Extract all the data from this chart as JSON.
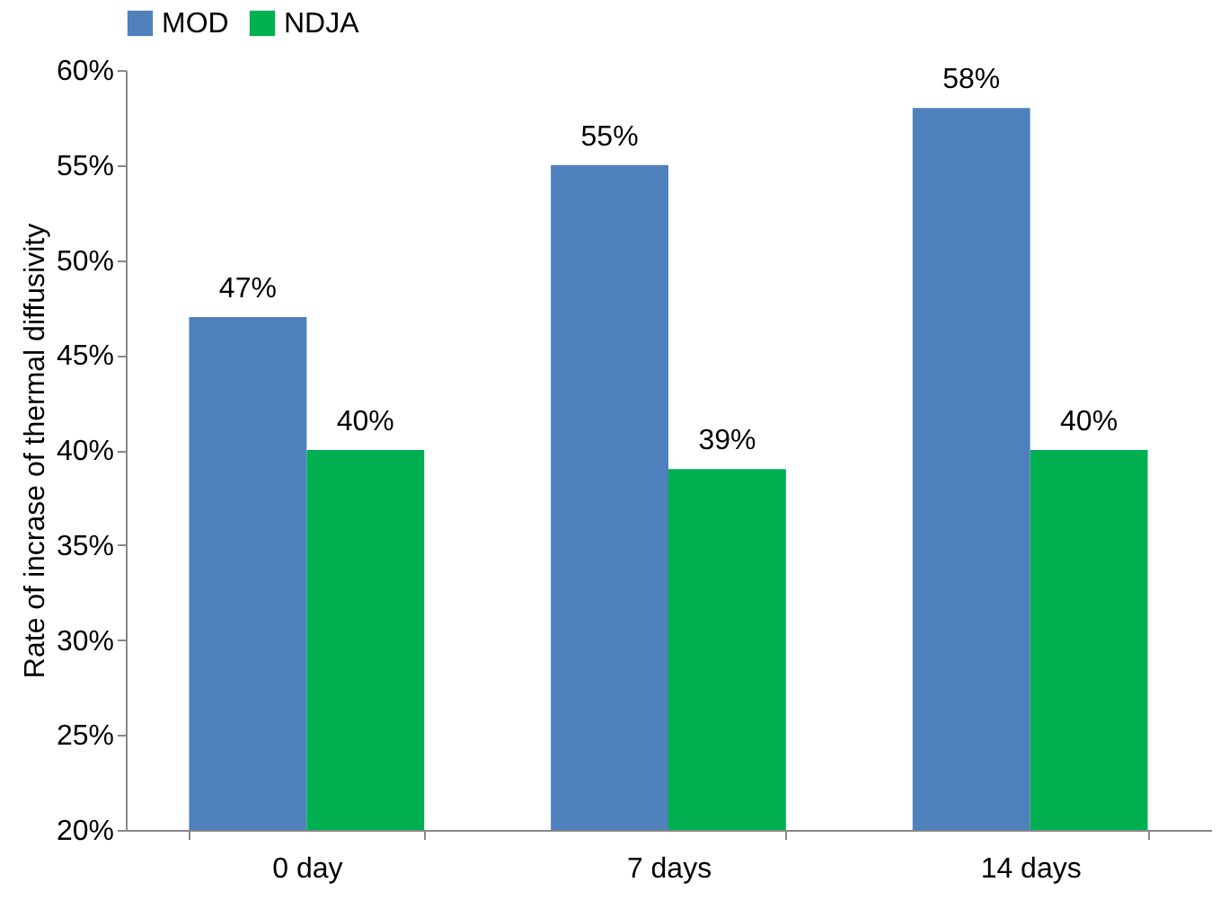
{
  "chart_data": {
    "type": "bar",
    "ylabel": "Rate of incrase of thermal diffusivity",
    "categories": [
      "0 day",
      "7 days",
      "14 days"
    ],
    "series": [
      {
        "name": "MOD",
        "color": "#4f81bd",
        "values": [
          47,
          55,
          58
        ],
        "value_labels": [
          "47%",
          "55%",
          "58%"
        ]
      },
      {
        "name": "NDJA",
        "color": "#00b050",
        "values": [
          40,
          39,
          40
        ],
        "value_labels": [
          "40%",
          "39%",
          "40%"
        ]
      }
    ],
    "ylim": [
      20,
      60
    ],
    "yticks": [
      {
        "value": 20,
        "label": "20%"
      },
      {
        "value": 25,
        "label": "25%"
      },
      {
        "value": 30,
        "label": "30%"
      },
      {
        "value": 35,
        "label": "35%"
      },
      {
        "value": 40,
        "label": "40%"
      },
      {
        "value": 45,
        "label": "45%"
      },
      {
        "value": 50,
        "label": "50%"
      },
      {
        "value": 55,
        "label": "55%"
      },
      {
        "value": 60,
        "label": "60%"
      }
    ],
    "legend": "top",
    "grid": false
  }
}
